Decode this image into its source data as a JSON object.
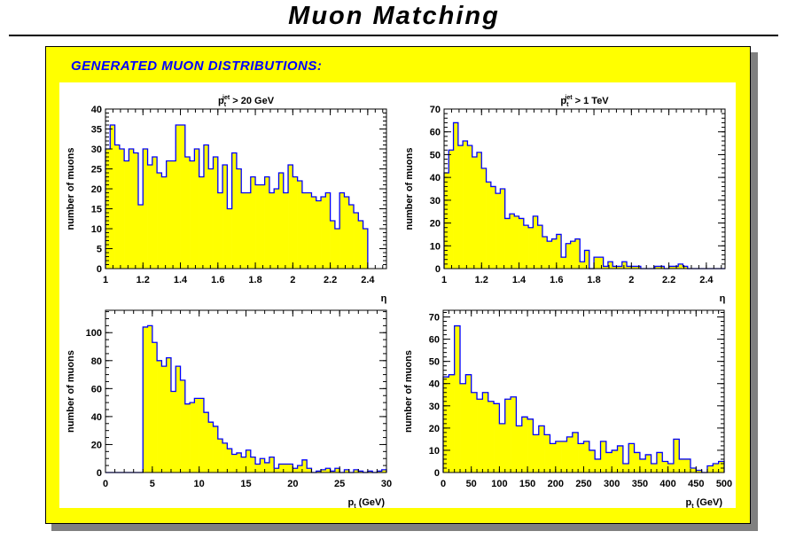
{
  "header": {
    "title": "Muon Matching",
    "section": "GENERATED MUON DISTRIBUTIONS:"
  },
  "colors": {
    "fill": "#ffff00",
    "line": "#0000ff",
    "panel": "#ffff00",
    "heading": "#0000ff"
  },
  "chart_data": [
    {
      "type": "bar",
      "title": {
        "p": "p",
        "sub": "t",
        "sup": "jet",
        "rest": " > 20 GeV"
      },
      "xlabel": "η",
      "ylabel": "number of muons",
      "xlim": [
        1,
        2.5
      ],
      "ylim": [
        0,
        40
      ],
      "bin_width": 0.025,
      "x_start": 1,
      "xticks": [
        "1",
        "1.2",
        "1.4",
        "1.6",
        "1.8",
        "2",
        "2.2",
        "2.4"
      ],
      "yticks": [
        "0",
        "5",
        "10",
        "15",
        "20",
        "25",
        "30",
        "35",
        "40"
      ],
      "values": [
        30,
        36,
        31,
        30,
        27,
        30,
        29,
        16,
        30,
        26,
        28,
        24,
        23,
        27,
        27,
        36,
        36,
        28,
        27,
        30,
        23,
        31,
        25,
        28,
        19,
        26,
        15,
        29,
        25,
        19,
        19,
        23,
        21,
        21,
        23,
        19,
        20,
        24,
        19,
        26,
        23,
        22,
        19,
        19,
        18,
        17,
        18,
        19,
        12,
        10,
        19,
        18,
        16,
        14,
        12,
        10
      ]
    },
    {
      "type": "bar",
      "title": {
        "p": "p",
        "sub": "t",
        "sup": "jet",
        "rest": " > 1 TeV"
      },
      "xlabel": "η",
      "ylabel": "number of muons",
      "xlim": [
        1,
        2.5
      ],
      "ylim": [
        0,
        70
      ],
      "bin_width": 0.025,
      "x_start": 1,
      "xticks": [
        "1",
        "1.2",
        "1.4",
        "1.6",
        "1.8",
        "2",
        "2.2",
        "2.4"
      ],
      "yticks": [
        "0",
        "10",
        "20",
        "30",
        "40",
        "50",
        "60",
        "70"
      ],
      "values": [
        42,
        52,
        64,
        54,
        56,
        54,
        49,
        51,
        44,
        38,
        36,
        33,
        35,
        22,
        24,
        23,
        22,
        19,
        18,
        23,
        19,
        14,
        12,
        13,
        15,
        5,
        11,
        12,
        13,
        3,
        8,
        0,
        5,
        5,
        1,
        3,
        1,
        1,
        3,
        1,
        1,
        1,
        0,
        0,
        0,
        1,
        1,
        0,
        1,
        1,
        2,
        1,
        0,
        0,
        0,
        0,
        0,
        0,
        0,
        0
      ]
    },
    {
      "type": "bar",
      "title": null,
      "xlabel": {
        "p": "p",
        "sub": "t",
        "rest": " (GeV)"
      },
      "ylabel": "number of muons",
      "xlim": [
        0,
        30
      ],
      "ylim": [
        0,
        116
      ],
      "bin_width": 0.5,
      "x_start": 0,
      "xticks": [
        "0",
        "5",
        "10",
        "15",
        "20",
        "25",
        "30"
      ],
      "yticks": [
        "0",
        "20",
        "40",
        "60",
        "80",
        "100"
      ],
      "values": [
        0,
        0,
        0,
        0,
        0,
        0,
        0,
        0,
        104,
        105,
        93,
        80,
        76,
        82,
        58,
        76,
        66,
        49,
        50,
        53,
        53,
        43,
        36,
        33,
        24,
        21,
        17,
        13,
        14,
        11,
        16,
        11,
        6,
        10,
        7,
        11,
        3,
        6,
        6,
        6,
        3,
        5,
        9,
        3,
        0,
        1,
        2,
        3,
        1,
        3,
        0,
        2,
        0,
        2,
        1,
        0,
        1,
        0,
        1,
        2
      ]
    },
    {
      "type": "bar",
      "title": null,
      "xlabel": {
        "p": "p",
        "sub": "t",
        "rest": " (GeV)"
      },
      "ylabel": "number of muons",
      "xlim": [
        0,
        500
      ],
      "ylim": [
        0,
        73
      ],
      "bin_width": 10,
      "x_start": 0,
      "xticks": [
        "0",
        "50",
        "100",
        "150",
        "200",
        "250",
        "300",
        "350",
        "400",
        "450",
        "500"
      ],
      "yticks": [
        "0",
        "10",
        "20",
        "30",
        "40",
        "50",
        "60",
        "70"
      ],
      "values": [
        43,
        44,
        66,
        40,
        44,
        36,
        33,
        36,
        32,
        31,
        22,
        33,
        34,
        21,
        25,
        24,
        17,
        21,
        17,
        13,
        14,
        14,
        16,
        18,
        13,
        14,
        10,
        6,
        14,
        9,
        10,
        12,
        4,
        13,
        9,
        6,
        8,
        4,
        9,
        5,
        4,
        15,
        6,
        6,
        2,
        1,
        0,
        3,
        4,
        5
      ]
    }
  ]
}
